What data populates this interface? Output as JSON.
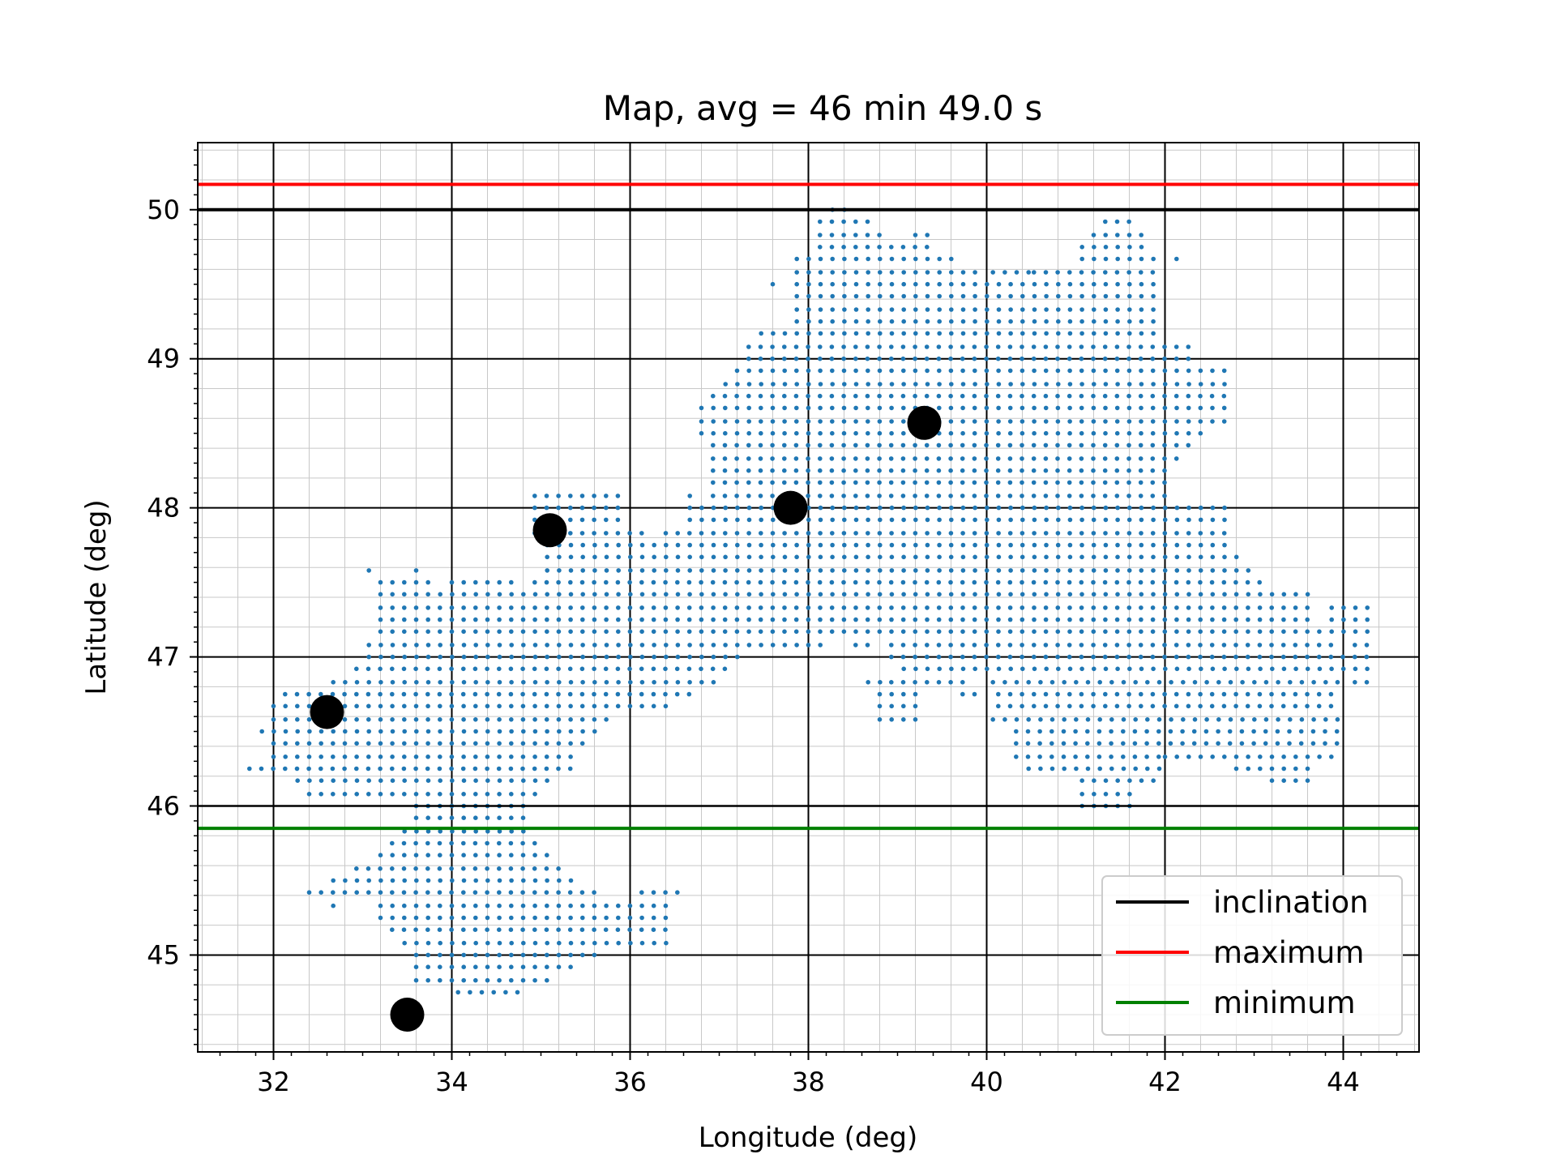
{
  "chart_data": {
    "type": "scatter",
    "title": "Map, avg = 46 min 49.0 s",
    "xlabel": "Longitude (deg)",
    "ylabel": "Latitude (deg)",
    "xlim": [
      31.15,
      44.85
    ],
    "ylim": [
      44.35,
      50.45
    ],
    "xticks": [
      "32",
      "34",
      "36",
      "38",
      "40",
      "42",
      "44"
    ],
    "yticks": [
      "45",
      "46",
      "47",
      "48",
      "49",
      "50"
    ],
    "grid": true,
    "legend_position": "lower-right",
    "colors": {
      "points": "#1f77b4",
      "stations": "#000000",
      "inclination": "#000000",
      "maximum": "#ff0000",
      "minimum": "#008000"
    },
    "grid_spacing": {
      "lon": 0.1333,
      "lat": 0.0833
    },
    "region_rows": [
      [
        50.0,
        [
          [
            38.27,
            38.37
          ]
        ]
      ],
      [
        49.92,
        [
          [
            38.13,
            38.67
          ],
          [
            41.33,
            41.6
          ]
        ]
      ],
      [
        49.83,
        [
          [
            38.13,
            38.8
          ],
          [
            39.2,
            39.33
          ],
          [
            41.2,
            41.73
          ]
        ]
      ],
      [
        49.75,
        [
          [
            38.13,
            39.33
          ],
          [
            41.07,
            41.73
          ]
        ]
      ],
      [
        49.67,
        [
          [
            37.87,
            39.6
          ],
          [
            41.07,
            41.87
          ],
          [
            42.13,
            42.13
          ]
        ]
      ],
      [
        49.58,
        [
          [
            37.87,
            39.87
          ],
          [
            40.07,
            40.47
          ],
          [
            40.53,
            41.87
          ]
        ]
      ],
      [
        49.5,
        [
          [
            37.6,
            37.6
          ],
          [
            37.87,
            41.87
          ]
        ]
      ],
      [
        49.42,
        [
          [
            37.87,
            41.87
          ]
        ]
      ],
      [
        49.33,
        [
          [
            37.87,
            41.87
          ]
        ]
      ],
      [
        49.25,
        [
          [
            37.87,
            41.87
          ]
        ]
      ],
      [
        49.17,
        [
          [
            37.47,
            37.73
          ],
          [
            37.87,
            41.87
          ]
        ]
      ],
      [
        49.08,
        [
          [
            37.33,
            42.27
          ]
        ]
      ],
      [
        49.0,
        [
          [
            37.33,
            42.27
          ]
        ]
      ],
      [
        48.92,
        [
          [
            37.2,
            42.67
          ]
        ]
      ],
      [
        48.83,
        [
          [
            37.07,
            42.67
          ]
        ]
      ],
      [
        48.75,
        [
          [
            36.93,
            42.67
          ]
        ]
      ],
      [
        48.67,
        [
          [
            36.8,
            42.67
          ]
        ]
      ],
      [
        48.58,
        [
          [
            36.8,
            42.67
          ]
        ]
      ],
      [
        48.5,
        [
          [
            36.8,
            42.4
          ]
        ]
      ],
      [
        48.42,
        [
          [
            36.93,
            42.27
          ]
        ]
      ],
      [
        48.33,
        [
          [
            36.93,
            42.13
          ]
        ]
      ],
      [
        48.25,
        [
          [
            36.93,
            42.0
          ]
        ]
      ],
      [
        48.17,
        [
          [
            36.93,
            42.0
          ]
        ]
      ],
      [
        48.08,
        [
          [
            34.93,
            35.87
          ],
          [
            36.67,
            36.67
          ],
          [
            36.93,
            42.0
          ]
        ]
      ],
      [
        48.0,
        [
          [
            34.93,
            35.87
          ],
          [
            36.67,
            42.67
          ]
        ]
      ],
      [
        47.92,
        [
          [
            34.93,
            35.87
          ],
          [
            36.67,
            42.67
          ]
        ]
      ],
      [
        47.83,
        [
          [
            34.93,
            36.13
          ],
          [
            36.4,
            42.67
          ]
        ]
      ],
      [
        47.75,
        [
          [
            35.07,
            42.67
          ]
        ]
      ],
      [
        47.67,
        [
          [
            35.07,
            42.8
          ]
        ]
      ],
      [
        47.58,
        [
          [
            33.07,
            33.07
          ],
          [
            33.6,
            33.6
          ],
          [
            35.07,
            42.93
          ]
        ]
      ],
      [
        47.5,
        [
          [
            33.2,
            33.73
          ],
          [
            34.0,
            34.67
          ],
          [
            34.93,
            43.07
          ]
        ]
      ],
      [
        47.42,
        [
          [
            33.2,
            33.73
          ],
          [
            33.87,
            43.6
          ]
        ]
      ],
      [
        47.33,
        [
          [
            33.2,
            43.6
          ],
          [
            43.87,
            44.27
          ]
        ]
      ],
      [
        47.25,
        [
          [
            33.2,
            43.6
          ],
          [
            43.87,
            44.27
          ]
        ]
      ],
      [
        47.17,
        [
          [
            33.2,
            43.73
          ],
          [
            43.87,
            44.27
          ]
        ]
      ],
      [
        47.08,
        [
          [
            33.07,
            37.87
          ],
          [
            38.0,
            38.13
          ],
          [
            38.53,
            38.67
          ],
          [
            38.93,
            43.87
          ],
          [
            44.13,
            44.27
          ]
        ]
      ],
      [
        47.0,
        [
          [
            33.07,
            37.2
          ],
          [
            38.93,
            44.27
          ]
        ]
      ],
      [
        46.92,
        [
          [
            32.93,
            37.07
          ],
          [
            39.07,
            44.27
          ]
        ]
      ],
      [
        46.83,
        [
          [
            32.67,
            36.93
          ],
          [
            38.67,
            38.8
          ],
          [
            38.93,
            39.73
          ],
          [
            40.07,
            43.87
          ],
          [
            44.13,
            44.27
          ]
        ]
      ],
      [
        46.75,
        [
          [
            32.13,
            36.67
          ],
          [
            38.8,
            39.2
          ],
          [
            39.73,
            39.87
          ],
          [
            40.13,
            43.87
          ]
        ]
      ],
      [
        46.67,
        [
          [
            32.0,
            36.4
          ],
          [
            38.8,
            39.2
          ],
          [
            40.13,
            43.87
          ]
        ]
      ],
      [
        46.58,
        [
          [
            32.0,
            35.73
          ],
          [
            38.8,
            39.2
          ],
          [
            40.07,
            43.87
          ]
        ]
      ],
      [
        46.5,
        [
          [
            31.87,
            35.6
          ],
          [
            40.33,
            43.87
          ]
        ]
      ],
      [
        46.42,
        [
          [
            32.0,
            35.47
          ],
          [
            40.33,
            43.87
          ]
        ]
      ],
      [
        46.33,
        [
          [
            32.0,
            35.33
          ],
          [
            40.33,
            41.87
          ],
          [
            42.0,
            43.87
          ]
        ]
      ],
      [
        46.25,
        [
          [
            31.73,
            35.33
          ],
          [
            40.47,
            41.87
          ],
          [
            42.8,
            43.6
          ]
        ]
      ],
      [
        46.17,
        [
          [
            32.27,
            35.07
          ],
          [
            41.07,
            41.87
          ],
          [
            43.2,
            43.6
          ]
        ]
      ],
      [
        46.08,
        [
          [
            32.4,
            34.93
          ],
          [
            41.07,
            41.6
          ]
        ]
      ],
      [
        46.0,
        [
          [
            33.6,
            34.8
          ],
          [
            41.07,
            41.6
          ]
        ]
      ],
      [
        45.92,
        [
          [
            33.6,
            34.8
          ]
        ]
      ],
      [
        45.83,
        [
          [
            33.47,
            34.8
          ]
        ]
      ],
      [
        45.75,
        [
          [
            33.33,
            34.93
          ]
        ]
      ],
      [
        45.67,
        [
          [
            33.2,
            35.07
          ]
        ]
      ],
      [
        45.58,
        [
          [
            32.93,
            35.2
          ]
        ]
      ],
      [
        45.5,
        [
          [
            32.67,
            35.33
          ]
        ]
      ],
      [
        45.42,
        [
          [
            32.4,
            33.2
          ],
          [
            33.33,
            35.6
          ],
          [
            36.13,
            36.53
          ]
        ]
      ],
      [
        45.33,
        [
          [
            32.67,
            32.67
          ],
          [
            33.2,
            36.4
          ]
        ]
      ],
      [
        45.25,
        [
          [
            33.2,
            36.4
          ]
        ]
      ],
      [
        45.17,
        [
          [
            33.33,
            36.4
          ]
        ]
      ],
      [
        45.08,
        [
          [
            33.47,
            35.73
          ],
          [
            35.87,
            36.4
          ]
        ]
      ],
      [
        45.0,
        [
          [
            33.6,
            35.6
          ]
        ]
      ],
      [
        44.92,
        [
          [
            33.6,
            35.33
          ]
        ]
      ],
      [
        44.83,
        [
          [
            33.6,
            35.07
          ]
        ]
      ],
      [
        44.75,
        [
          [
            34.07,
            34.8
          ]
        ]
      ]
    ],
    "stations": [
      {
        "lon": 32.6,
        "lat": 46.63
      },
      {
        "lon": 33.5,
        "lat": 44.6
      },
      {
        "lon": 35.1,
        "lat": 47.85
      },
      {
        "lon": 37.8,
        "lat": 48.0
      },
      {
        "lon": 39.3,
        "lat": 48.57
      }
    ],
    "series": [
      {
        "name": "inclination",
        "type": "hline",
        "y": 50.0,
        "color": "#000000"
      },
      {
        "name": "maximum",
        "type": "hline",
        "y": 50.17,
        "color": "#ff0000"
      },
      {
        "name": "minimum",
        "type": "hline",
        "y": 45.85,
        "color": "#008000"
      }
    ],
    "extra_hlines": [
      46.0
    ]
  }
}
